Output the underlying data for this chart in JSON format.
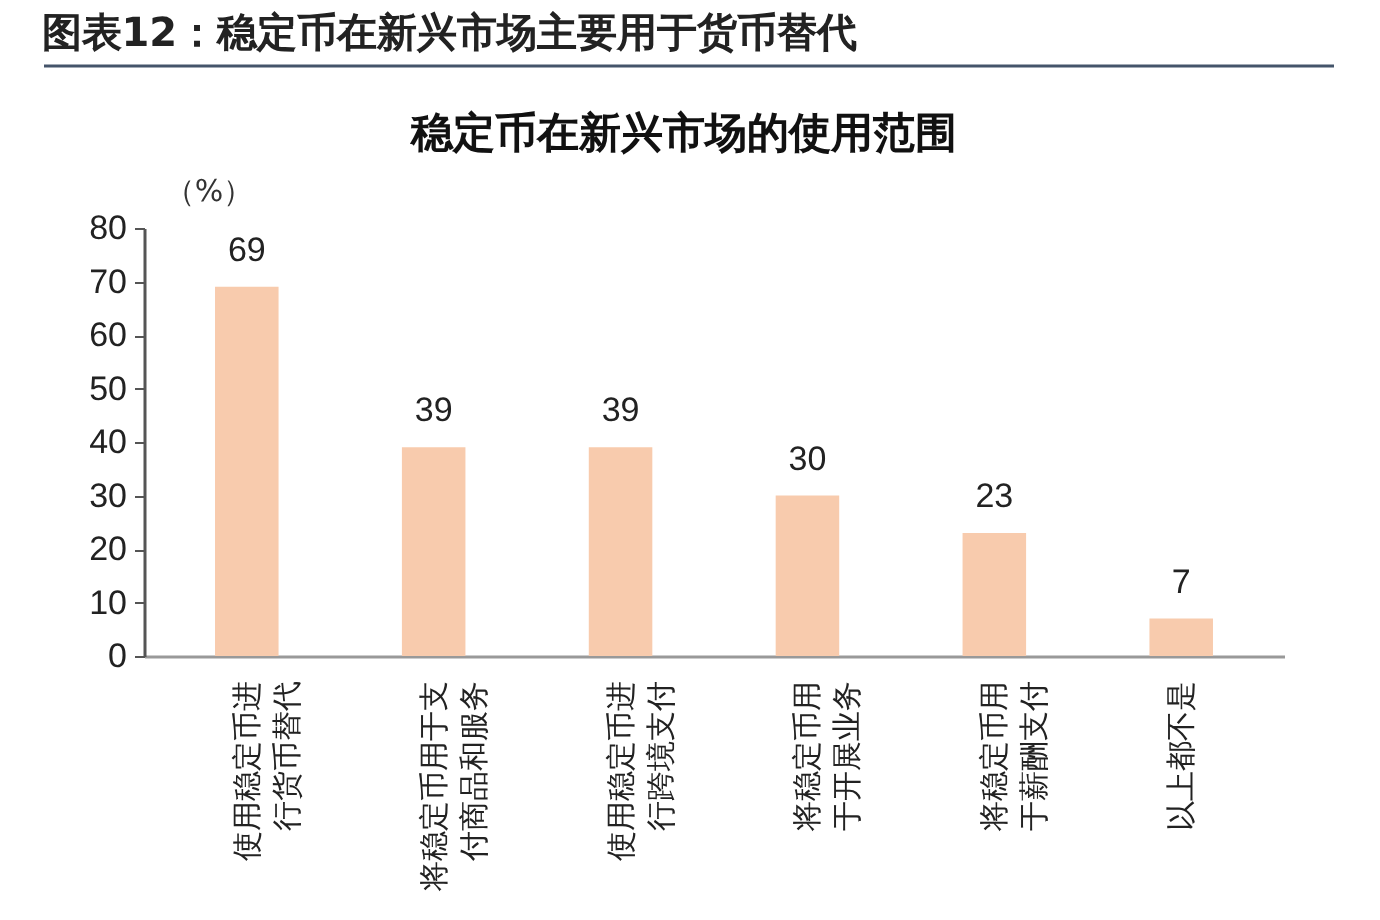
{
  "chart_data": {
    "type": "bar",
    "title": "图表12：稳定币在新兴市场主要用于货币替代",
    "subtitle": "稳定币在新兴市场的使用范围",
    "ylabel": "（%）",
    "categories": [
      "使用稳定币进行货币替代",
      "将稳定币用于支付商品和服务",
      "使用稳定币进行跨境支付",
      "将稳定币用于开展业务",
      "将稳定币用于薪酬支付",
      "以上都不是"
    ],
    "values": [
      69,
      39,
      39,
      30,
      23,
      7
    ],
    "color": "#f8cbad",
    "ylim": [
      0,
      80
    ],
    "yticks": [
      0,
      10,
      20,
      30,
      40,
      50,
      60,
      70,
      80
    ],
    "grid": false,
    "data_labels": true
  }
}
